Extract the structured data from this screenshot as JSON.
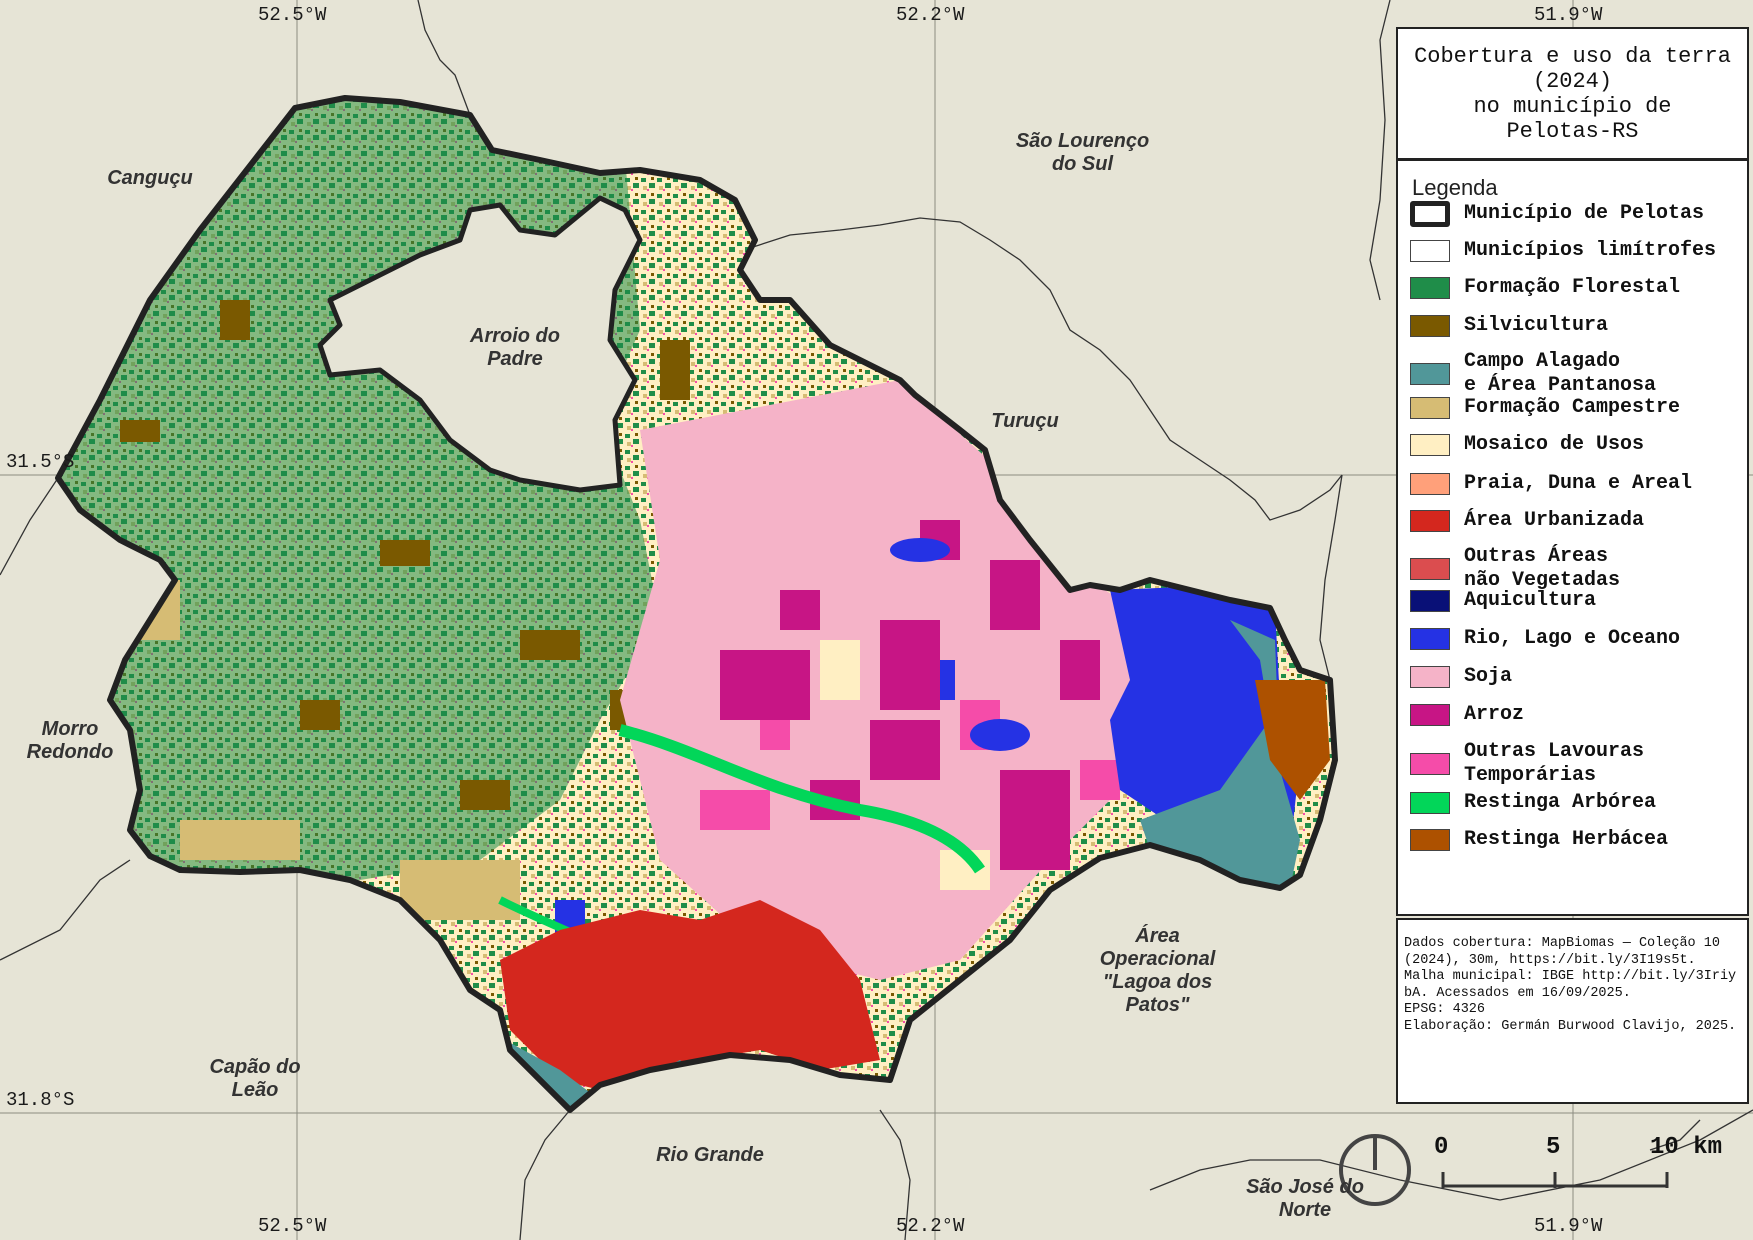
{
  "map": {
    "title": "Cobertura e uso da terra\n(2024)\nno município de\nPelotas-RS",
    "legend_title": "Legenda",
    "legend_items": [
      {
        "label": "Município de Pelotas",
        "color": "#ffffff",
        "style": "outline-thick"
      },
      {
        "label": "Municípios limítrofes",
        "color": "#ffffff"
      },
      {
        "label": "Formação Florestal",
        "color": "#1f8d49"
      },
      {
        "label": "Silvicultura",
        "color": "#7a5900"
      },
      {
        "label": "Campo Alagado\ne Área Pantanosa",
        "color": "#519799"
      },
      {
        "label": "Formação Campestre",
        "color": "#d6bc74"
      },
      {
        "label": "Mosaico de Usos",
        "color": "#ffefc3"
      },
      {
        "label": "Praia, Duna e Areal",
        "color": "#ffa07a"
      },
      {
        "label": "Área Urbanizada",
        "color": "#d4271e"
      },
      {
        "label": "Outras Áreas\nnão Vegetadas",
        "color": "#db4d4f"
      },
      {
        "label": "Aquicultura",
        "color": "#091077"
      },
      {
        "label": "Rio, Lago e Oceano",
        "color": "#2532e4"
      },
      {
        "label": "Soja",
        "color": "#f5b3c8"
      },
      {
        "label": "Arroz",
        "color": "#c71585"
      },
      {
        "label": "Outras Lavouras\nTemporárias",
        "color": "#f54ca9"
      },
      {
        "label": "Restinga Arbórea",
        "color": "#02d659"
      },
      {
        "label": "Restinga Herbácea",
        "color": "#ad5100"
      }
    ],
    "credits": "Dados cobertura: MapBiomas — Coleção 10 (2024), 30m, https://bit.ly/3I19s5t.\nMalha municipal: IBGE http://bit.ly/3IriybA. Acessados em 16/09/2025.\nEPSG: 4326\nElaboração: Germán Burwood Clavijo, 2025.",
    "coordinates": {
      "lon_top": [
        "52.5°W",
        "52.2°W",
        "51.9°W"
      ],
      "lon_bottom": [
        "52.5°W",
        "52.2°W",
        "51.9°W"
      ],
      "lat": [
        "31.5°S",
        "31.8°S"
      ]
    },
    "places": [
      {
        "id": "cangucu",
        "label": "Canguçu"
      },
      {
        "id": "sao-lourenco",
        "label": "São Lourenço\ndo Sul"
      },
      {
        "id": "arroio-do-padre",
        "label": "Arroio do\nPadre"
      },
      {
        "id": "turucu",
        "label": "Turuçu"
      },
      {
        "id": "morro-redondo",
        "label": "Morro\nRedondo"
      },
      {
        "id": "area-operacional",
        "label": "Área\nOperacional\n\"Lagoa dos\nPatos\""
      },
      {
        "id": "capao-do-leao",
        "label": "Capão do\nLeão"
      },
      {
        "id": "rio-grande",
        "label": "Rio Grande"
      },
      {
        "id": "sao-jose-do-norte",
        "label": "São José do\nNorte"
      }
    ],
    "scale_bar": {
      "labels": [
        "0",
        "5",
        "10 km"
      ]
    },
    "background_color": "#e6e4d6",
    "boundary_color": "#222222"
  }
}
